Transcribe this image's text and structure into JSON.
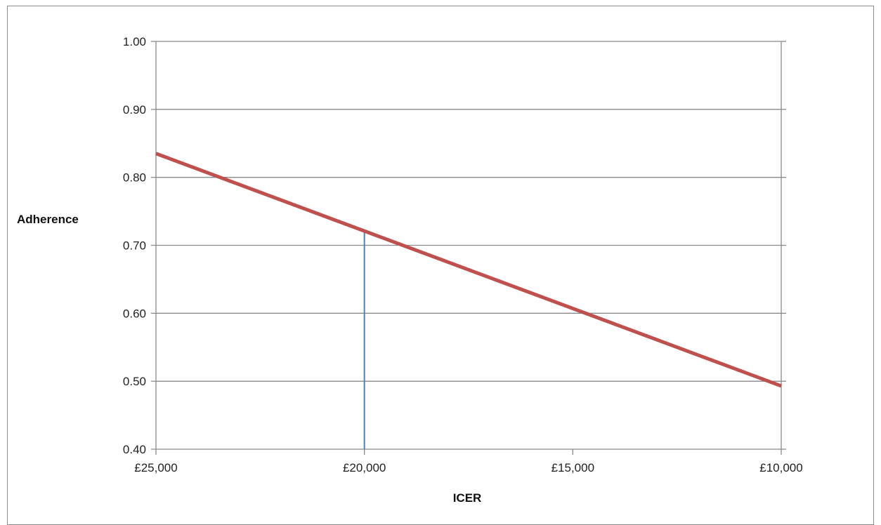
{
  "chart_data": {
    "type": "line",
    "title": "",
    "xlabel": "ICER",
    "ylabel": "Adherence",
    "x_reversed": true,
    "xlim": [
      25000,
      10000
    ],
    "ylim": [
      0.4,
      1.0
    ],
    "x_ticks": [
      25000,
      20000,
      15000,
      10000
    ],
    "x_tick_labels": [
      "£25,000",
      "£20,000",
      "£15,000",
      "£10,000"
    ],
    "y_ticks": [
      0.4,
      0.5,
      0.6,
      0.7,
      0.8,
      0.9,
      1.0
    ],
    "y_tick_labels": [
      "0.40",
      "0.50",
      "0.60",
      "0.70",
      "0.80",
      "0.90",
      "1.00"
    ],
    "grid": "horizontal",
    "series": [
      {
        "x": [
          25000,
          10000
        ],
        "y": [
          0.835,
          0.493
        ],
        "color": "#c0504d"
      }
    ],
    "annotations": [
      {
        "type": "vertical-line",
        "x": 20000,
        "y_from": 0.4,
        "y_to": 0.72,
        "color": "#4f81bd"
      }
    ]
  }
}
